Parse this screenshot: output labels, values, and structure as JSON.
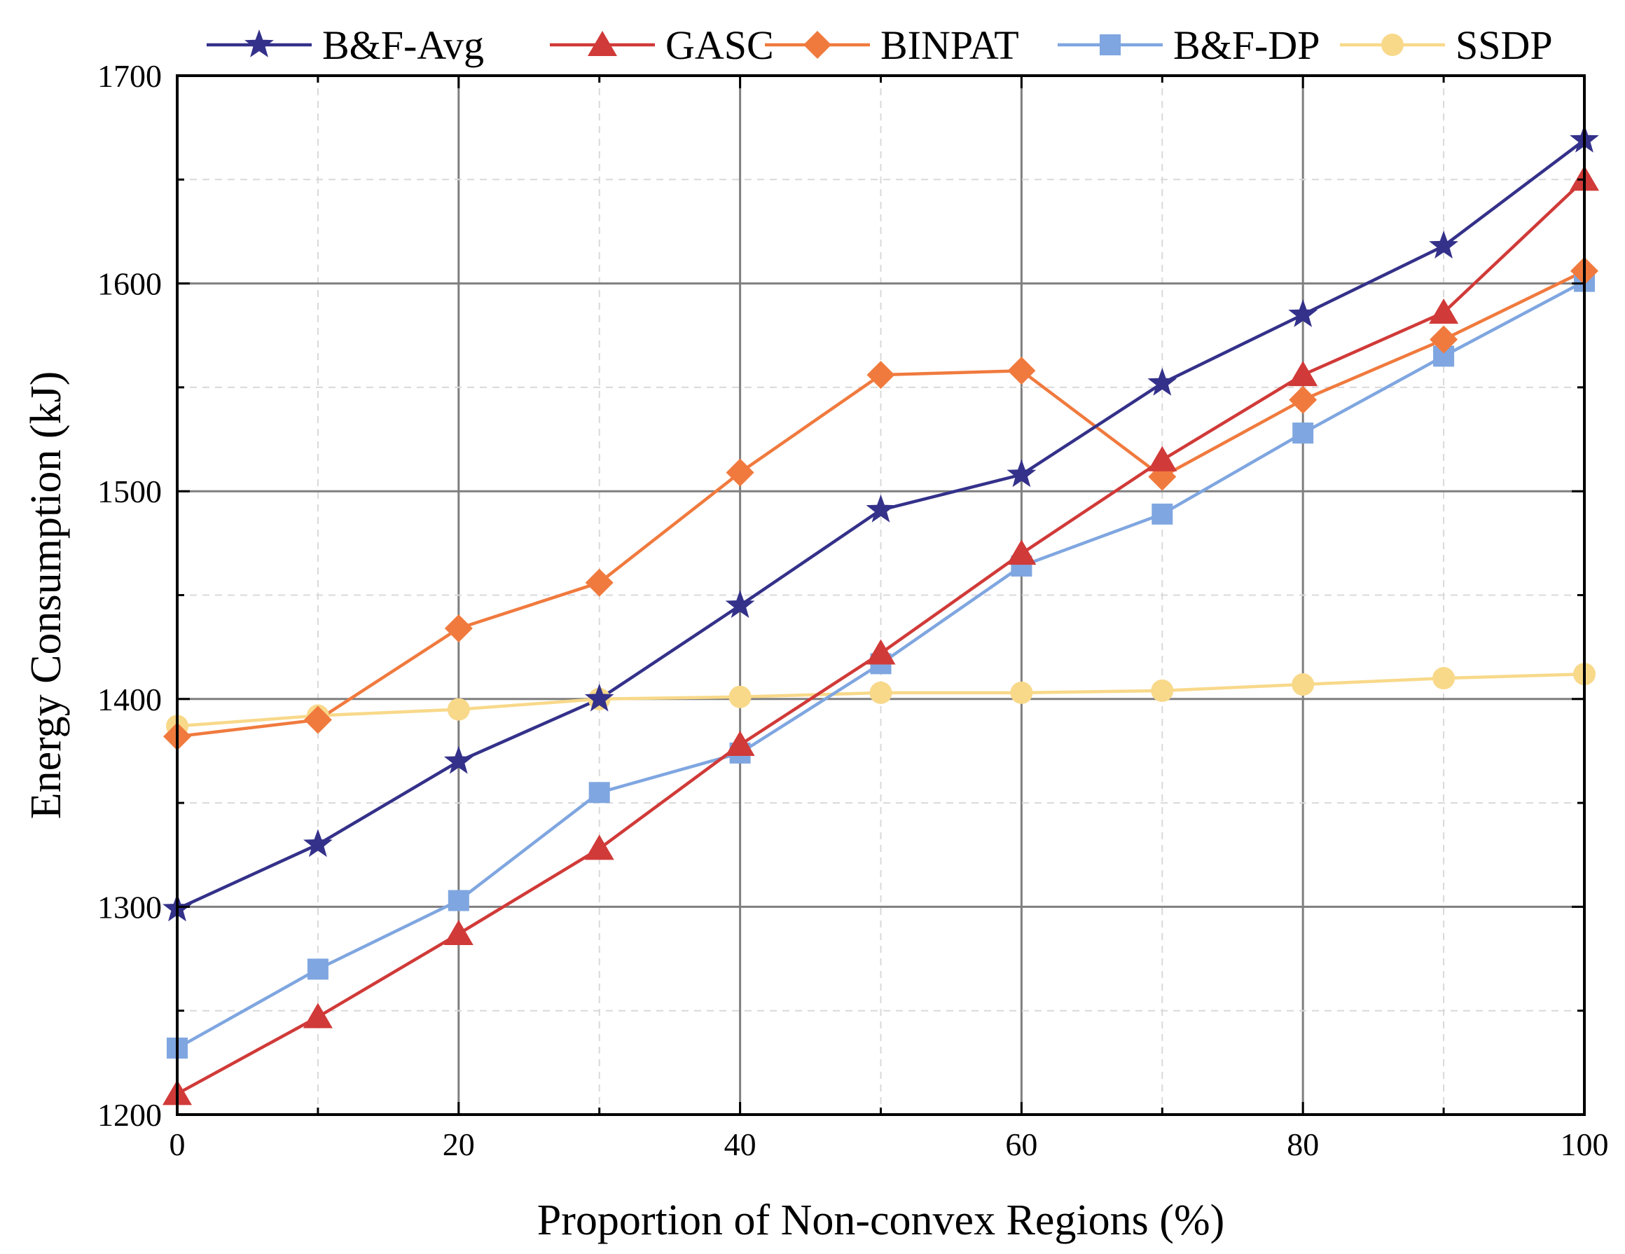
{
  "chart_data": {
    "type": "line",
    "title": "",
    "xlabel": "Proportion of Non-convex Regions (%)",
    "ylabel": "Energy Consumption (kJ)",
    "xlim": [
      0,
      100
    ],
    "ylim": [
      1200,
      1700
    ],
    "xticks": [
      "0",
      "20",
      "40",
      "60",
      "80",
      "100"
    ],
    "yticks": [
      "1200",
      "1300",
      "1400",
      "1500",
      "1600",
      "1700"
    ],
    "grid": "major solid, minor dashed",
    "legend": "top",
    "x": [
      0,
      10,
      20,
      30,
      40,
      50,
      60,
      70,
      80,
      90,
      100
    ],
    "series": [
      {
        "name": "B&F-Avg",
        "color": "#34318a",
        "marker": "star",
        "values": [
          1299,
          1330,
          1370,
          1400,
          1445,
          1491,
          1508,
          1552,
          1585,
          1618,
          1669
        ]
      },
      {
        "name": "GASC",
        "color": "#d03a38",
        "marker": "triangle",
        "values": [
          1210,
          1247,
          1287,
          1328,
          1378,
          1422,
          1470,
          1515,
          1556,
          1586,
          1650
        ]
      },
      {
        "name": "BINPAT",
        "color": "#f07a3e",
        "marker": "diamond",
        "values": [
          1382,
          1390,
          1434,
          1456,
          1509,
          1556,
          1558,
          1507,
          1544,
          1573,
          1606
        ]
      },
      {
        "name": "B&F-DP",
        "color": "#7fa6e0",
        "marker": "square",
        "values": [
          1232,
          1270,
          1303,
          1355,
          1374,
          1417,
          1464,
          1489,
          1528,
          1565,
          1601
        ]
      },
      {
        "name": "SSDP",
        "color": "#f8d98a",
        "marker": "circle",
        "values": [
          1387,
          1392,
          1395,
          1400,
          1401,
          1403,
          1403,
          1404,
          1407,
          1410,
          1412
        ]
      }
    ]
  }
}
